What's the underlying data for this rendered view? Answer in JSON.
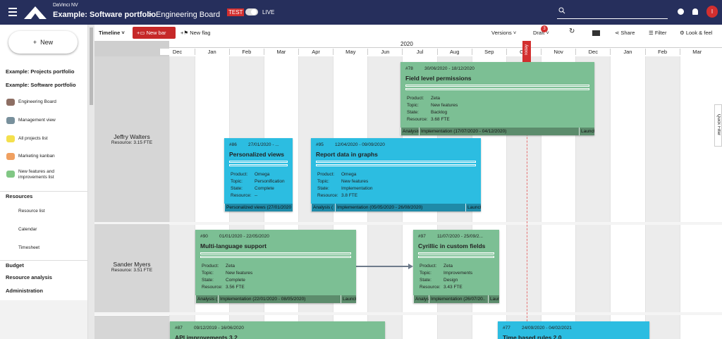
{
  "header": {
    "company": "DaVinci NV",
    "portfolio": "Example: Software portfolio",
    "board": "Engineering Board",
    "env_test": "TEST",
    "env_live": "LIVE",
    "user_initial": "I"
  },
  "sidebar": {
    "new_button": "New",
    "portfolios": [
      "Example: Projects portfolio",
      "Example: Software portfolio"
    ],
    "views": [
      "Engineering Board",
      "Management view",
      "All projects list",
      "Marketing kanban",
      "New features and improvements list"
    ],
    "resources_title": "Resources",
    "resources_items": [
      "Resource list",
      "Calendar",
      "Timesheet"
    ],
    "groups": [
      "Budget",
      "Resource analysis",
      "Administration"
    ]
  },
  "toolbar": {
    "view": "Timeline",
    "new_bar": "New bar",
    "new_flag": "New flag",
    "versions": "Versions",
    "draft": "Draft",
    "draft_badge": "3",
    "share": "Share",
    "filter": "Filter",
    "look": "Look & feel"
  },
  "timeline": {
    "year": "2020",
    "months": [
      "Dec",
      "Jan",
      "Feb",
      "Mar",
      "Apr",
      "May",
      "Jun",
      "Jul",
      "Aug",
      "Sep",
      "Oct",
      "Nov",
      "Dec",
      "Jan",
      "Feb",
      "Mar"
    ],
    "today": "Today",
    "quick_filter": "Quick Filter"
  },
  "resources": [
    {
      "name": "Jeffry Walters",
      "capacity": "Resource: 3.15 FTE"
    },
    {
      "name": "Sander Myers",
      "capacity": "Resource: 3.51 FTE"
    }
  ],
  "field_labels": [
    "Product:",
    "Topic:",
    "State:",
    "Resource:"
  ],
  "colors": {
    "green": "#7cbf94",
    "blue": "#2cbde1"
  },
  "cards": [
    {
      "id": "#78",
      "dates": "30/06/2020 - 18/12/2020",
      "title": "Field level permissions",
      "color": "green",
      "fields": [
        "Zeta",
        "New features",
        "Backlog",
        "3.68 FTE"
      ],
      "phases": [
        "Analysis",
        "Implementation (17/07/2020 - 04/12/2020)",
        "Launch"
      ]
    },
    {
      "id": "#86",
      "dates": "27/01/2020 - ...",
      "title": "Personalized views",
      "color": "blue",
      "fields": [
        "Omega",
        "Personification",
        "Complete",
        "--"
      ],
      "phases": [
        "Personalized views (27/01/2020"
      ]
    },
    {
      "id": "#95",
      "dates": "12/04/2020 - 09/09/2020",
      "title": "Report data in graphs",
      "color": "blue",
      "fields": [
        "Omega",
        "New features",
        "Implementation",
        "3.8 FTE"
      ],
      "phases": [
        "Analysis (",
        "Implementation (05/05/2020 - 26/08/2020)",
        "Launch"
      ]
    },
    {
      "id": "#90",
      "dates": "01/01/2020 - 22/05/2020",
      "title": "Multi-language support",
      "color": "green",
      "fields": [
        "Zeta",
        "New features",
        "Complete",
        "3.56 FTE"
      ],
      "phases": [
        "Analysis (",
        "Implementation (22/01/2020 - 08/05/2020)",
        "Launch"
      ]
    },
    {
      "id": "#97",
      "dates": "11/07/2020 - 25/09/2...",
      "title": "Cyrillic in custom fields",
      "color": "green",
      "fields": [
        "Zeta",
        "Improvements",
        "Design",
        "3.43 FTE"
      ],
      "phases": [
        "Analysis",
        "Implementation (26/07/20..",
        "Launch"
      ]
    },
    {
      "id": "#87",
      "dates": "09/12/2019 - 16/06/2020",
      "title": "API improvements 3.2",
      "color": "green",
      "fields": [],
      "phases": []
    },
    {
      "id": "#77",
      "dates": "24/09/2020 - 04/02/2021",
      "title": "Time based rules 2.0",
      "color": "blue",
      "fields": [],
      "phases": []
    }
  ]
}
